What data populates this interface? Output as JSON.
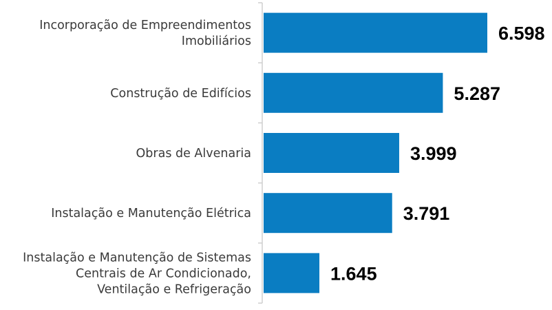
{
  "chart_data": {
    "type": "hbar",
    "categories": [
      "Incorporação de Empreendimentos\nImobiliários",
      "Construção de Edifícios",
      "Obras de Alvenaria",
      "Instalação e Manutenção Elétrica",
      "Instalação e Manutenção de Sistemas\nCentrais de Ar Condicionado,\nVentilação e Refrigeração"
    ],
    "values": [
      6598,
      5287,
      3999,
      3791,
      1645
    ],
    "value_labels": [
      "6.598",
      "5.287",
      "3.999",
      "3.791",
      "1.645"
    ],
    "color": "#0a7dc2"
  }
}
